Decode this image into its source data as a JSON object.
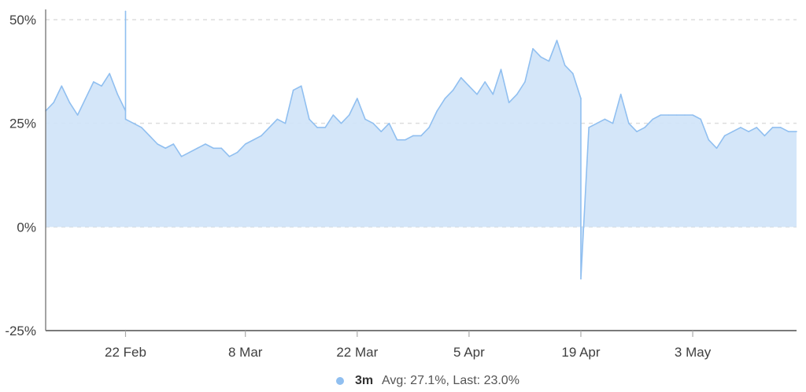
{
  "chart_data": {
    "type": "area",
    "title": "",
    "xlabel": "",
    "ylabel": "",
    "ylim": [
      -25,
      52
    ],
    "y_ticks": [
      {
        "value": 50,
        "label": "50%"
      },
      {
        "value": 25,
        "label": "25%"
      },
      {
        "value": 0,
        "label": "0%"
      },
      {
        "value": -25,
        "label": "-25%"
      }
    ],
    "x_range": [
      "2024-02-12",
      "2024-05-16"
    ],
    "x_ticks": [
      {
        "date": "2024-02-22",
        "label": "22 Feb"
      },
      {
        "date": "2024-03-08",
        "label": "8 Mar"
      },
      {
        "date": "2024-03-22",
        "label": "22 Mar"
      },
      {
        "date": "2024-04-05",
        "label": "5 Apr"
      },
      {
        "date": "2024-04-19",
        "label": "19 Apr"
      },
      {
        "date": "2024-05-03",
        "label": "3 May"
      }
    ],
    "grid": {
      "horizontal": true,
      "dashed": true,
      "vertical": false
    },
    "legend_position": "bottom-center",
    "series": [
      {
        "name": "3m",
        "color": "#90bff0",
        "fill_color": "#cfe3f8",
        "avg_label": "Avg: 27.1%, Last: 23.0%",
        "points": [
          [
            "2024-02-12",
            28
          ],
          [
            "2024-02-13",
            30
          ],
          [
            "2024-02-14",
            34
          ],
          [
            "2024-02-15",
            30
          ],
          [
            "2024-02-16",
            27
          ],
          [
            "2024-02-17",
            31
          ],
          [
            "2024-02-18",
            35
          ],
          [
            "2024-02-19",
            34
          ],
          [
            "2024-02-20",
            37
          ],
          [
            "2024-02-21",
            32
          ],
          [
            "2024-02-22",
            28
          ],
          [
            "2024-02-22",
            52
          ],
          [
            "2024-02-22",
            26
          ],
          [
            "2024-02-23",
            25
          ],
          [
            "2024-02-24",
            24
          ],
          [
            "2024-02-25",
            22
          ],
          [
            "2024-02-26",
            20
          ],
          [
            "2024-02-27",
            19
          ],
          [
            "2024-02-28",
            20
          ],
          [
            "2024-02-29",
            17
          ],
          [
            "2024-03-01",
            18
          ],
          [
            "2024-03-02",
            19
          ],
          [
            "2024-03-03",
            20
          ],
          [
            "2024-03-04",
            19
          ],
          [
            "2024-03-05",
            19
          ],
          [
            "2024-03-06",
            17
          ],
          [
            "2024-03-07",
            18
          ],
          [
            "2024-03-08",
            20
          ],
          [
            "2024-03-09",
            21
          ],
          [
            "2024-03-10",
            22
          ],
          [
            "2024-03-11",
            24
          ],
          [
            "2024-03-12",
            26
          ],
          [
            "2024-03-13",
            25
          ],
          [
            "2024-03-14",
            33
          ],
          [
            "2024-03-15",
            34
          ],
          [
            "2024-03-16",
            26
          ],
          [
            "2024-03-17",
            24
          ],
          [
            "2024-03-18",
            24
          ],
          [
            "2024-03-19",
            27
          ],
          [
            "2024-03-20",
            25
          ],
          [
            "2024-03-21",
            27
          ],
          [
            "2024-03-22",
            31
          ],
          [
            "2024-03-23",
            26
          ],
          [
            "2024-03-24",
            25
          ],
          [
            "2024-03-25",
            23
          ],
          [
            "2024-03-26",
            25
          ],
          [
            "2024-03-27",
            21
          ],
          [
            "2024-03-28",
            21
          ],
          [
            "2024-03-29",
            22
          ],
          [
            "2024-03-30",
            22
          ],
          [
            "2024-03-31",
            24
          ],
          [
            "2024-04-01",
            28
          ],
          [
            "2024-04-02",
            31
          ],
          [
            "2024-04-03",
            33
          ],
          [
            "2024-04-04",
            36
          ],
          [
            "2024-04-05",
            34
          ],
          [
            "2024-04-06",
            32
          ],
          [
            "2024-04-07",
            35
          ],
          [
            "2024-04-08",
            32
          ],
          [
            "2024-04-09",
            38
          ],
          [
            "2024-04-10",
            30
          ],
          [
            "2024-04-11",
            32
          ],
          [
            "2024-04-12",
            35
          ],
          [
            "2024-04-13",
            43
          ],
          [
            "2024-04-14",
            41
          ],
          [
            "2024-04-15",
            40
          ],
          [
            "2024-04-16",
            45
          ],
          [
            "2024-04-17",
            39
          ],
          [
            "2024-04-18",
            37
          ],
          [
            "2024-04-19",
            31
          ],
          [
            "2024-04-19",
            -12.5
          ],
          [
            "2024-04-20",
            24
          ],
          [
            "2024-04-21",
            25
          ],
          [
            "2024-04-22",
            26
          ],
          [
            "2024-04-23",
            25
          ],
          [
            "2024-04-24",
            32
          ],
          [
            "2024-04-25",
            25
          ],
          [
            "2024-04-26",
            23
          ],
          [
            "2024-04-27",
            24
          ],
          [
            "2024-04-28",
            26
          ],
          [
            "2024-04-29",
            27
          ],
          [
            "2024-04-30",
            27
          ],
          [
            "2024-05-01",
            27
          ],
          [
            "2024-05-02",
            27
          ],
          [
            "2024-05-03",
            27
          ],
          [
            "2024-05-04",
            26
          ],
          [
            "2024-05-05",
            21
          ],
          [
            "2024-05-06",
            19
          ],
          [
            "2024-05-07",
            22
          ],
          [
            "2024-05-08",
            23
          ],
          [
            "2024-05-09",
            24
          ],
          [
            "2024-05-10",
            23
          ],
          [
            "2024-05-11",
            24
          ],
          [
            "2024-05-12",
            22
          ],
          [
            "2024-05-13",
            24
          ],
          [
            "2024-05-14",
            24
          ],
          [
            "2024-05-15",
            23
          ],
          [
            "2024-05-16",
            23
          ]
        ]
      }
    ]
  }
}
